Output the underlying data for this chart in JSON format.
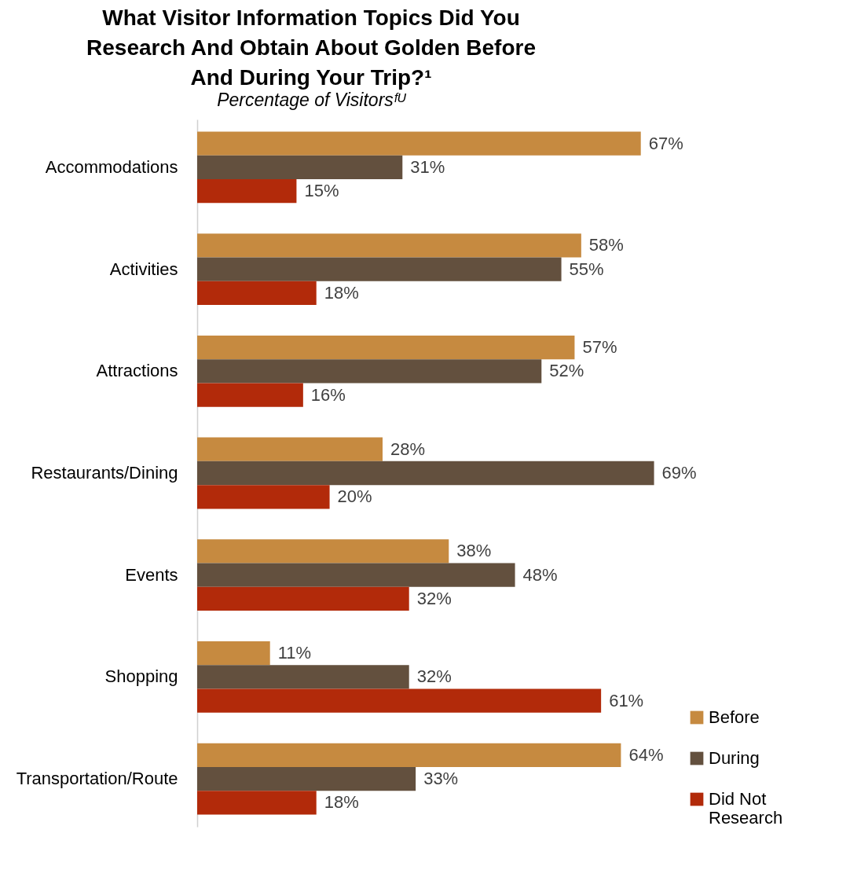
{
  "chart_data": {
    "type": "bar",
    "orientation": "horizontal",
    "title": "What Visitor Information Topics Did You Research And Obtain About Golden Before And During Your Trip?¹",
    "subtitle": "Percentage of Visitorsᶠᵁ",
    "categories": [
      "Accommodations",
      "Activities",
      "Attractions",
      "Restaurants/Dining",
      "Events",
      "Shopping",
      "Transportation/Route"
    ],
    "series": [
      {
        "name": "Before",
        "color": "#c68a40",
        "values": [
          67,
          58,
          57,
          28,
          38,
          11,
          64
        ],
        "value_labels": [
          "67%",
          "58%",
          "57%",
          "28%",
          "38%",
          "11%",
          "64%"
        ]
      },
      {
        "name": "During",
        "color": "#63503e",
        "values": [
          31,
          55,
          52,
          69,
          48,
          32,
          33
        ],
        "value_labels": [
          "31%",
          "55%",
          "52%",
          "69%",
          "48%",
          "32%",
          "33%"
        ]
      },
      {
        "name": "Did Not Research",
        "color": "#b22a0a",
        "values": [
          15,
          18,
          16,
          20,
          32,
          61,
          18
        ],
        "value_labels": [
          "15%",
          "18%",
          "16%",
          "20%",
          "32%",
          "61%",
          "18%"
        ]
      }
    ],
    "legend": "bottom right",
    "grid": false
  }
}
